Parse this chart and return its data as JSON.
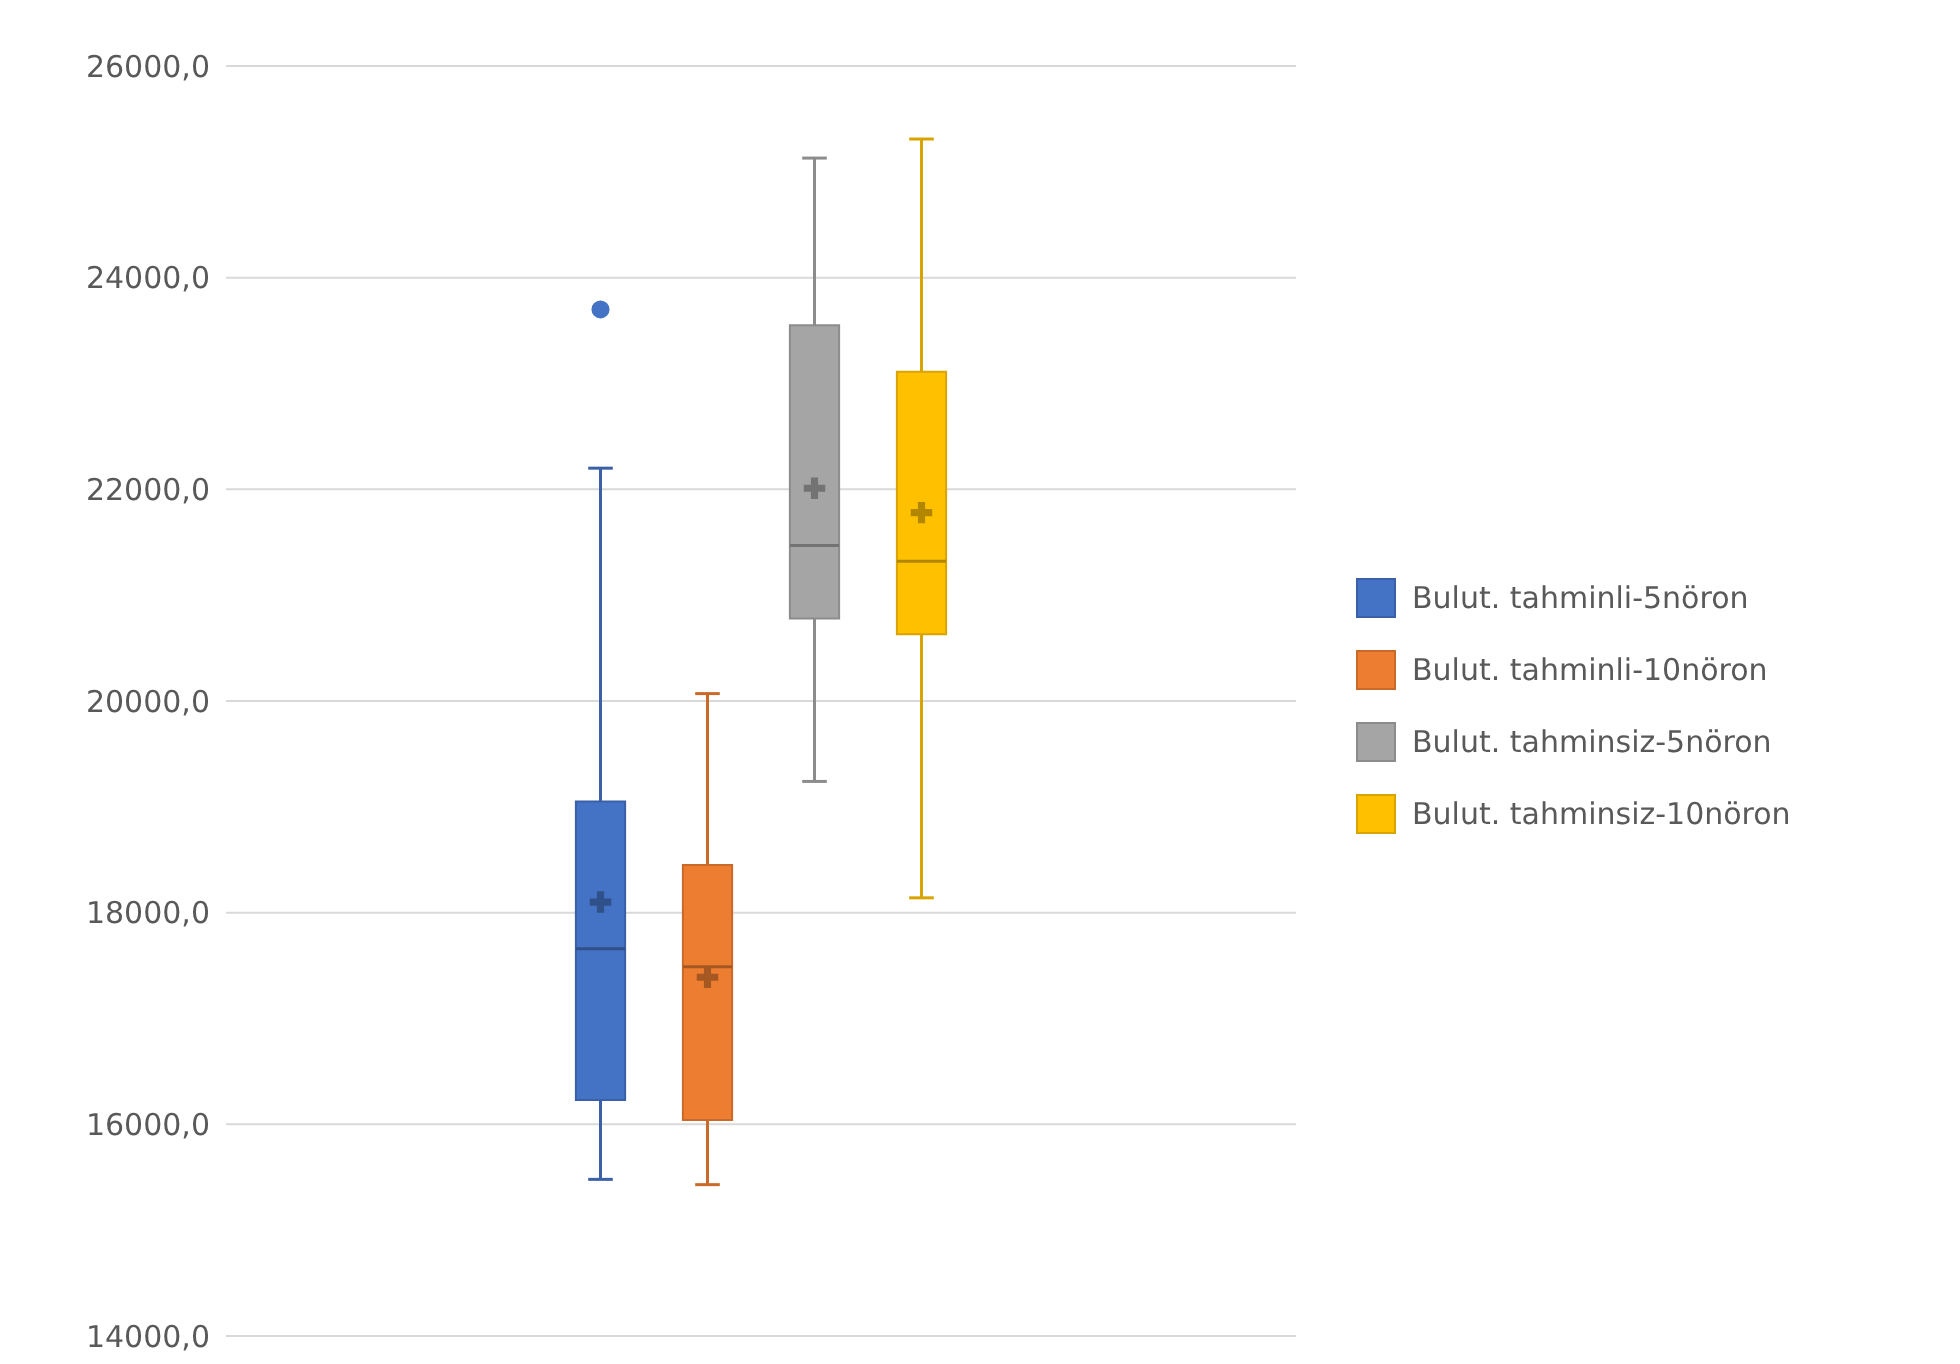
{
  "chart_data": {
    "type": "box",
    "categories": [
      null
    ],
    "series": [
      {
        "name": "Bulut. tahminli-5nöron",
        "color": "#4472c4",
        "boxes": [
          {
            "low": 15480,
            "q1": 16230,
            "median": 17660,
            "q3": 19050,
            "high": 22200,
            "mean": 18100,
            "outliers": [
              23700
            ]
          }
        ]
      },
      {
        "name": "Bulut. tahminli-10nöron",
        "color": "#ed7d31",
        "boxes": [
          {
            "low": 15430,
            "q1": 16040,
            "median": 17490,
            "q3": 18450,
            "high": 20070,
            "mean": 17390
          }
        ]
      },
      {
        "name": "Bulut. tahminsiz-5nöron",
        "color": "#a5a5a5",
        "boxes": [
          {
            "low": 19240,
            "q1": 20780,
            "median": 21470,
            "q3": 23550,
            "high": 25130,
            "mean": 22010
          }
        ]
      },
      {
        "name": "Bulut. tahminsiz-10nöron",
        "color": "#ffc000",
        "boxes": [
          {
            "low": 18140,
            "q1": 20630,
            "median": 21320,
            "q3": 23110,
            "high": 25310,
            "mean": 21780
          }
        ]
      }
    ],
    "ylim": [
      14000,
      26000
    ],
    "yticks": [
      {
        "value": 14000,
        "label": "14000,0"
      },
      {
        "value": 16000,
        "label": "16000,0"
      },
      {
        "value": 18000,
        "label": "18000,0"
      },
      {
        "value": 20000,
        "label": "20000,0"
      },
      {
        "value": 22000,
        "label": "22000,0"
      },
      {
        "value": 24000,
        "label": "24000,0"
      },
      {
        "value": 26000,
        "label": "26000,0"
      }
    ],
    "grid": "y",
    "legend": "right",
    "marker": "cross",
    "tick_labels": "y"
  }
}
